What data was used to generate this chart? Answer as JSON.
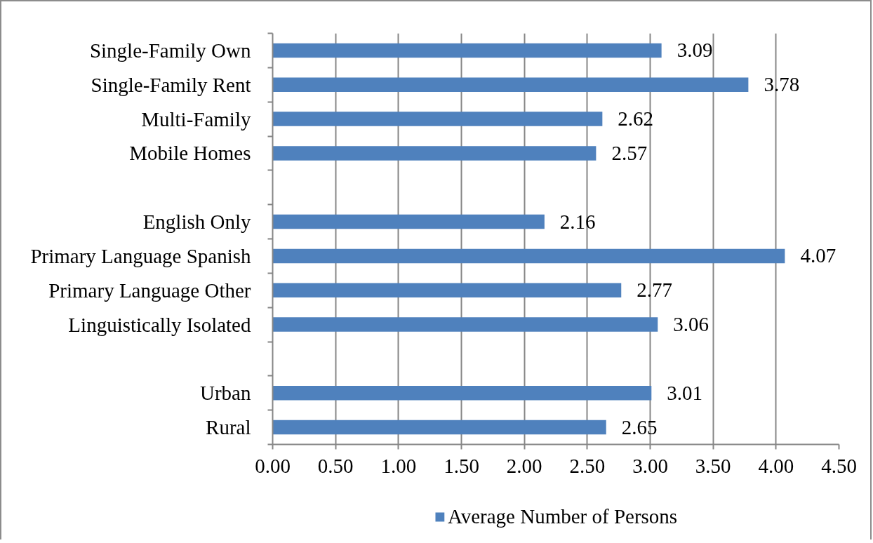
{
  "chart_data": {
    "type": "bar",
    "orientation": "horizontal",
    "categories": [
      "Single-Family Own",
      "Single-Family Rent",
      "Multi-Family",
      "Mobile Homes",
      null,
      "English Only",
      "Primary Language Spanish",
      "Primary Language Other",
      "Linguistically Isolated",
      null,
      "Urban",
      "Rural"
    ],
    "series": [
      {
        "name": "Average Number of Persons",
        "color": "#4f81bd",
        "values": [
          3.09,
          3.78,
          2.62,
          2.57,
          null,
          2.16,
          4.07,
          2.77,
          3.06,
          null,
          3.01,
          2.65
        ]
      }
    ],
    "xlim": [
      0,
      4.5
    ],
    "xticks": [
      {
        "value": 0,
        "label": "0.00"
      },
      {
        "value": 0.5,
        "label": "0.50"
      },
      {
        "value": 1,
        "label": "1.00"
      },
      {
        "value": 1.5,
        "label": "1.50"
      },
      {
        "value": 2,
        "label": "2.00"
      },
      {
        "value": 2.5,
        "label": "2.50"
      },
      {
        "value": 3,
        "label": "3.00"
      },
      {
        "value": 3.5,
        "label": "3.50"
      },
      {
        "value": 4,
        "label": "4.00"
      },
      {
        "value": 4.5,
        "label": "4.50"
      }
    ],
    "grid": "x",
    "legend": "bottom",
    "data_labels": true
  }
}
